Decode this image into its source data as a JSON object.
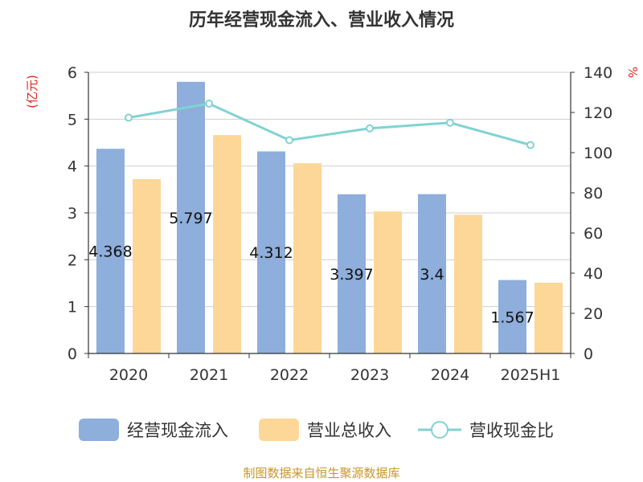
{
  "chart_data": {
    "type": "bar",
    "title": "历年经营现金流入、营业收入情况",
    "categories": [
      "2020",
      "2021",
      "2022",
      "2023",
      "2024",
      "2025H1"
    ],
    "series": [
      {
        "name": "经营现金流入",
        "kind": "bar",
        "axis": "left",
        "color": "#8eaedb",
        "values": [
          4.368,
          5.797,
          4.312,
          3.397,
          3.4,
          1.567
        ],
        "labels": [
          "4.368",
          "5.797",
          "4.312",
          "3.397",
          "3.4",
          "1.567"
        ]
      },
      {
        "name": "营业总收入",
        "kind": "bar",
        "axis": "left",
        "color": "#fdd797",
        "values": [
          3.72,
          4.66,
          4.06,
          3.03,
          2.96,
          1.51
        ]
      },
      {
        "name": "营收现金比",
        "kind": "line",
        "axis": "right",
        "color": "#82d2d2",
        "values": [
          117.4,
          124.4,
          106.2,
          112.1,
          114.9,
          103.8
        ]
      }
    ],
    "y_left": {
      "unit": "(亿元)",
      "ylim": [
        0,
        6
      ],
      "ticks": [
        0,
        1,
        2,
        3,
        4,
        5,
        6
      ]
    },
    "y_right": {
      "unit": "%",
      "ylim": [
        0,
        140
      ],
      "ticks": [
        0,
        20,
        40,
        60,
        80,
        100,
        120,
        140
      ]
    },
    "grid": true,
    "legend_position": "bottom"
  },
  "source": "制图数据来自恒生聚源数据库"
}
